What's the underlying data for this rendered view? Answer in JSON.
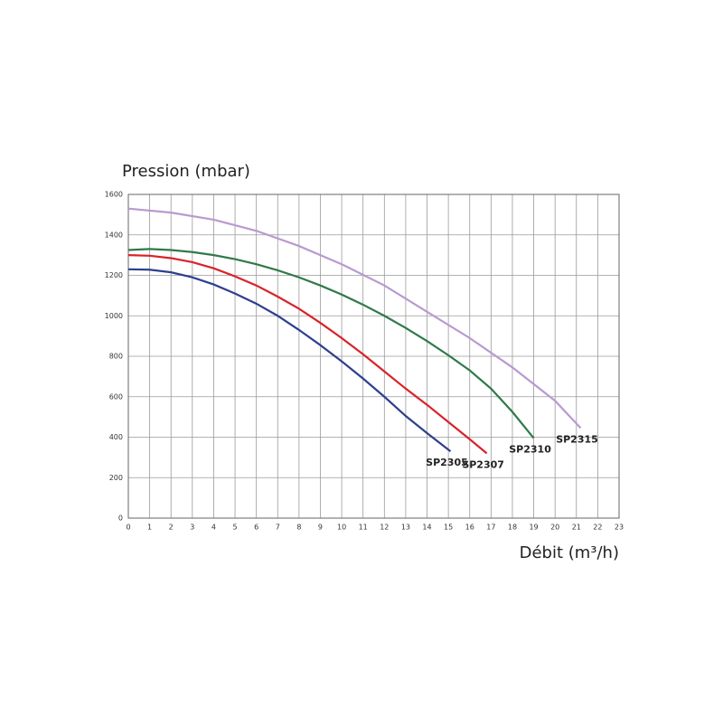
{
  "chart_data": {
    "type": "line",
    "y_label": "Pression (mbar)",
    "x_label": "Débit (m³/h)",
    "xlim": [
      0,
      23
    ],
    "xticks": [
      0,
      1,
      2,
      3,
      4,
      5,
      6,
      7,
      8,
      9,
      10,
      11,
      12,
      13,
      14,
      15,
      16,
      17,
      18,
      19,
      20,
      21,
      22,
      23
    ],
    "ylim": [
      0,
      1600
    ],
    "yticks": [
      0,
      200,
      400,
      600,
      800,
      1000,
      1200,
      1400,
      1600
    ],
    "grid": true,
    "series": [
      {
        "name": "SP2305",
        "color": "#2e3f8f",
        "x": [
          0,
          1,
          2,
          3,
          4,
          5,
          6,
          7,
          8,
          9,
          10,
          11,
          12,
          13,
          14,
          15.1
        ],
        "values": [
          1230,
          1228,
          1215,
          1190,
          1155,
          1110,
          1060,
          1000,
          930,
          855,
          775,
          690,
          600,
          505,
          420,
          330
        ]
      },
      {
        "name": "SP2307",
        "color": "#d9222a",
        "x": [
          0,
          1,
          2,
          3,
          4,
          5,
          6,
          7,
          8,
          9,
          10,
          11,
          12,
          13,
          14,
          15,
          16,
          16.8
        ],
        "values": [
          1300,
          1297,
          1285,
          1265,
          1235,
          1195,
          1150,
          1095,
          1035,
          965,
          890,
          810,
          725,
          640,
          560,
          475,
          390,
          320
        ]
      },
      {
        "name": "SP2310",
        "color": "#2f7a4a",
        "x": [
          0,
          1,
          2,
          3,
          4,
          5,
          6,
          7,
          8,
          9,
          10,
          11,
          12,
          13,
          14,
          15,
          16,
          17,
          18,
          19
        ],
        "values": [
          1325,
          1330,
          1325,
          1315,
          1300,
          1280,
          1255,
          1225,
          1190,
          1150,
          1105,
          1055,
          1000,
          940,
          875,
          805,
          730,
          640,
          525,
          395
        ]
      },
      {
        "name": "SP2315",
        "color": "#b89ad0",
        "x": [
          0,
          2,
          4,
          6,
          8,
          10,
          12,
          14,
          16,
          18,
          20,
          21.2
        ],
        "values": [
          1530,
          1510,
          1475,
          1420,
          1345,
          1255,
          1150,
          1020,
          890,
          745,
          580,
          445
        ]
      }
    ]
  }
}
